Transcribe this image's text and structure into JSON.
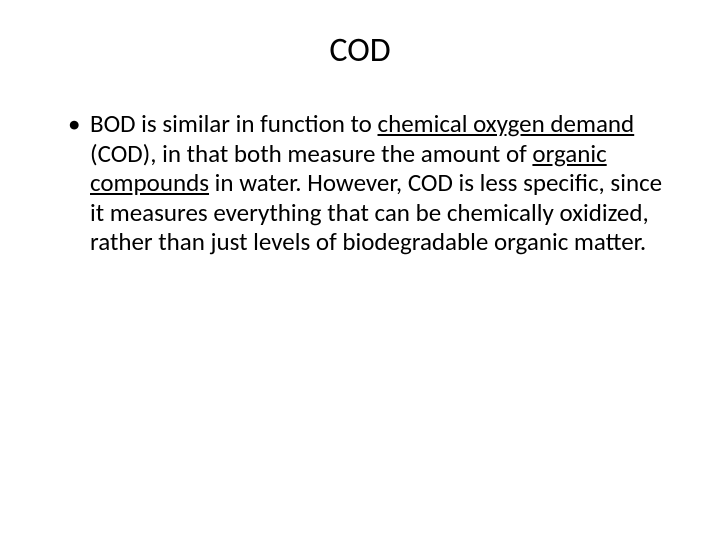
{
  "title": "COD",
  "bullet": {
    "part1": "BOD is similar in function to ",
    "link1": "chemical oxygen demand",
    "part2": " (COD), in that both measure the amount of ",
    "link2": "organic compounds",
    "part3": " in water. However, COD is less specific, since it measures everything that can be chemically oxidized, rather than just levels of biodegradable organic matter."
  },
  "colors": {
    "background": "#ffffff",
    "text": "#000000"
  },
  "typography": {
    "title_fontsize": 34,
    "body_fontsize": 25,
    "font_family": "Calibri"
  }
}
